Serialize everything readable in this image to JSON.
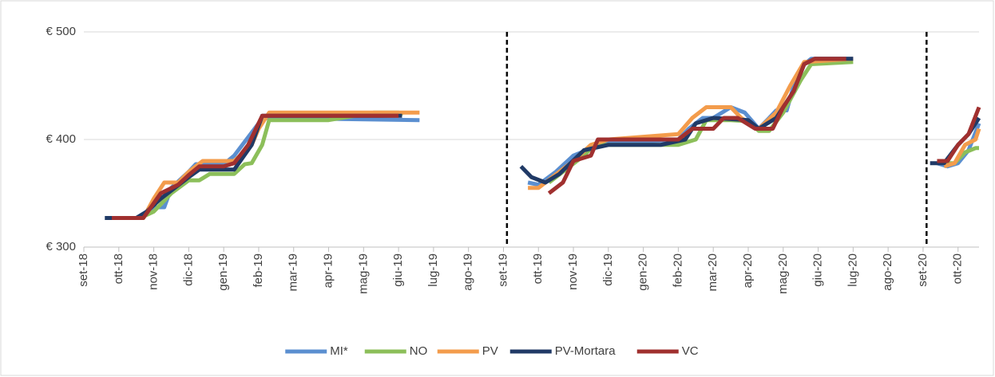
{
  "chart_data": {
    "type": "line",
    "xlim": [
      0,
      25.6
    ],
    "xticks": [
      {
        "value": 0,
        "label": "set-18"
      },
      {
        "value": 1,
        "label": "ott-18"
      },
      {
        "value": 2,
        "label": "nov-18"
      },
      {
        "value": 3,
        "label": "dic-18"
      },
      {
        "value": 4,
        "label": "gen-19"
      },
      {
        "value": 5,
        "label": "feb-19"
      },
      {
        "value": 6,
        "label": "mar-19"
      },
      {
        "value": 7,
        "label": "apr-19"
      },
      {
        "value": 8,
        "label": "mag-19"
      },
      {
        "value": 9,
        "label": "giu-19"
      },
      {
        "value": 10,
        "label": "lug-19"
      },
      {
        "value": 11,
        "label": "ago-19"
      },
      {
        "value": 12,
        "label": "set-19"
      },
      {
        "value": 13,
        "label": "ott-19"
      },
      {
        "value": 14,
        "label": "nov-19"
      },
      {
        "value": 15,
        "label": "dic-19"
      },
      {
        "value": 16,
        "label": "gen-20"
      },
      {
        "value": 17,
        "label": "feb-20"
      },
      {
        "value": 18,
        "label": "mar-20"
      },
      {
        "value": 19,
        "label": "apr-20"
      },
      {
        "value": 20,
        "label": "mag-20"
      },
      {
        "value": 21,
        "label": "giu-20"
      },
      {
        "value": 22,
        "label": "lug-20"
      },
      {
        "value": 23,
        "label": "ago-20"
      },
      {
        "value": 24,
        "label": "set-20"
      },
      {
        "value": 25,
        "label": "ott-20"
      }
    ],
    "ylim": [
      300,
      500
    ],
    "yticks": [
      {
        "value": 300,
        "label": "€ 300"
      },
      {
        "value": 400,
        "label": "€ 400"
      },
      {
        "value": 500,
        "label": "€ 500"
      }
    ],
    "grid": true,
    "separators": [
      12.1,
      24.1
    ],
    "legend": "bottom",
    "series": [
      {
        "name": "MI*",
        "color": "#5b8fd0",
        "x": [
          0.7,
          1.5,
          2.0,
          2.3,
          2.5,
          3.0,
          3.2,
          4.0,
          4.3,
          5.0,
          5.2,
          9.6,
          null,
          12.7,
          13.0,
          13.5,
          14.0,
          15.0,
          16.0,
          17.0,
          17.3,
          17.7,
          18.0,
          18.5,
          18.9,
          19.3,
          19.6,
          19.8,
          20.1,
          20.3,
          20.6,
          20.8,
          22.0,
          null,
          24.4,
          24.7,
          25.0,
          25.3,
          25.6
        ],
        "values": [
          327,
          327,
          337,
          337,
          355,
          370,
          377,
          377,
          385,
          415,
          420,
          418,
          null,
          360,
          358,
          370,
          385,
          398,
          398,
          400,
          410,
          420,
          420,
          430,
          425,
          410,
          420,
          427,
          427,
          450,
          470,
          475,
          475,
          null,
          378,
          375,
          378,
          390,
          415
        ]
      },
      {
        "name": "NO",
        "color": "#8cbf5a",
        "x": [
          0.7,
          1.6,
          2.0,
          2.5,
          3.0,
          3.3,
          3.6,
          4.3,
          4.6,
          4.8,
          5.1,
          5.3,
          7.0,
          8.3,
          9.0,
          9.1,
          null,
          13.3,
          13.9,
          14.3,
          14.6,
          17.0,
          17.5,
          17.8,
          18.5,
          19.0,
          19.3,
          19.6,
          20.0,
          20.5,
          20.8,
          22.0,
          null,
          24.6,
          24.9,
          25.2,
          25.5,
          25.6
        ],
        "values": [
          327,
          327,
          333,
          350,
          362,
          362,
          368,
          368,
          377,
          378,
          395,
          418,
          418,
          425,
          425,
          422,
          null,
          360,
          375,
          385,
          395,
          395,
          400,
          418,
          418,
          417,
          408,
          408,
          425,
          455,
          470,
          472,
          null,
          378,
          378,
          388,
          392,
          392
        ]
      },
      {
        "name": "PV",
        "color": "#f39c4c",
        "x": [
          0.8,
          1.7,
          2.0,
          2.3,
          2.7,
          3.0,
          3.4,
          4.3,
          4.8,
          5.0,
          5.3,
          9.6,
          null,
          12.7,
          13.0,
          13.4,
          14.0,
          14.5,
          15.0,
          17.0,
          17.4,
          17.8,
          18.5,
          18.8,
          19.3,
          19.8,
          20.2,
          20.6,
          22.0,
          null,
          24.6,
          24.9,
          25.2,
          25.5,
          25.6
        ],
        "values": [
          327,
          327,
          345,
          360,
          360,
          370,
          380,
          380,
          395,
          410,
          425,
          425,
          null,
          355,
          355,
          365,
          380,
          395,
          400,
          405,
          420,
          430,
          430,
          420,
          410,
          425,
          450,
          472,
          475,
          null,
          375,
          378,
          395,
          400,
          410
        ]
      },
      {
        "name": "PV-Mortara",
        "color": "#203a66",
        "x": [
          0.6,
          1.5,
          1.8,
          2.2,
          2.6,
          3.0,
          3.3,
          3.6,
          4.3,
          4.8,
          5.1,
          9.1,
          null,
          12.5,
          12.8,
          13.2,
          13.6,
          14.3,
          15.0,
          16.5,
          17.2,
          17.5,
          18.0,
          19.0,
          19.3,
          19.8,
          20.3,
          20.6,
          20.9,
          22.0,
          null,
          24.2,
          24.6,
          25.0,
          25.3,
          25.6
        ],
        "values": [
          327,
          327,
          333,
          345,
          355,
          365,
          372,
          372,
          372,
          395,
          422,
          422,
          null,
          375,
          365,
          360,
          368,
          390,
          395,
          395,
          400,
          415,
          420,
          418,
          410,
          420,
          445,
          470,
          475,
          475,
          null,
          378,
          378,
          395,
          405,
          420
        ]
      },
      {
        "name": "VC",
        "color": "#a0302f",
        "x": [
          0.8,
          1.7,
          2.2,
          2.7,
          3.0,
          3.3,
          4.0,
          4.3,
          4.7,
          5.1,
          9.0,
          null,
          13.3,
          13.7,
          14.0,
          14.5,
          14.7,
          17.0,
          17.4,
          18.0,
          18.3,
          18.7,
          19.2,
          19.7,
          20.0,
          20.3,
          20.6,
          20.9,
          21.8,
          null,
          24.4,
          24.7,
          25.0,
          25.3,
          25.6
        ],
        "values": [
          327,
          327,
          350,
          358,
          367,
          375,
          375,
          378,
          395,
          422,
          422,
          null,
          350,
          360,
          380,
          385,
          400,
          400,
          410,
          410,
          420,
          420,
          410,
          410,
          430,
          445,
          470,
          475,
          475,
          null,
          380,
          380,
          395,
          405,
          430
        ]
      }
    ]
  }
}
